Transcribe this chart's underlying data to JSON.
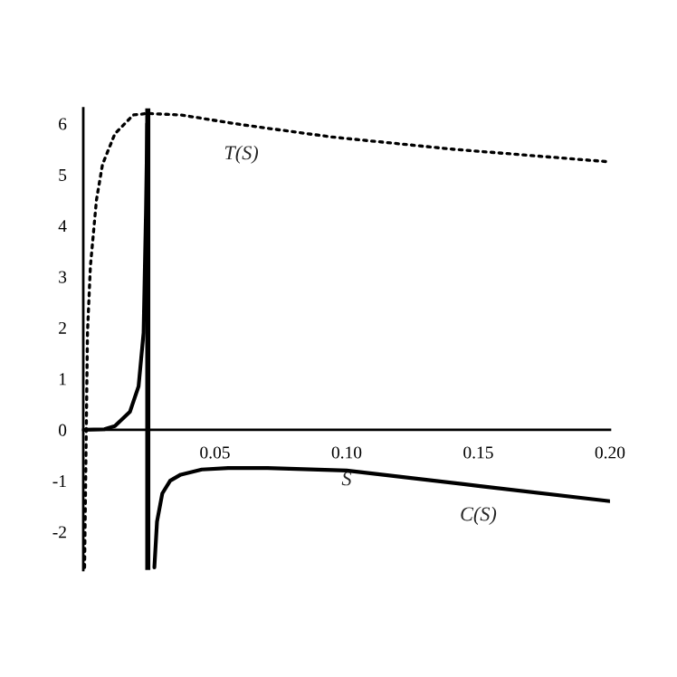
{
  "chart_data": {
    "type": "line",
    "xlabel": "S",
    "xlim": [
      0,
      0.2
    ],
    "ylim": [
      -2.75,
      6.3
    ],
    "xticks": [
      {
        "value": 0.05,
        "label": "0.05"
      },
      {
        "value": 0.1,
        "label": "0.10"
      },
      {
        "value": 0.15,
        "label": "0.15"
      },
      {
        "value": 0.2,
        "label": "0.20"
      }
    ],
    "yticks": [
      -2,
      -1,
      0,
      1,
      2,
      3,
      4,
      5,
      6
    ],
    "grid": false,
    "legend": false,
    "ref_lines": [
      {
        "axis": "x",
        "value": 0.0245,
        "color": "#000000"
      }
    ],
    "series": [
      {
        "name": "T(S)",
        "color": "#000000",
        "line_style": "dotted",
        "x": [
          0.0005,
          0.0016,
          0.0027,
          0.005,
          0.0073,
          0.012,
          0.019,
          0.0245,
          0.037,
          0.06,
          0.094,
          0.14,
          0.2
        ],
        "values": [
          -2.7,
          1.9,
          3.2,
          4.5,
          5.2,
          5.8,
          6.17,
          6.2,
          6.17,
          5.98,
          5.74,
          5.5,
          5.25
        ]
      },
      {
        "name": "C(S)",
        "color": "#000000",
        "line_style": "solid",
        "x": [
          0,
          0.008,
          0.012,
          0.0177,
          0.021,
          0.0229,
          0.0238,
          0.0243,
          0.0244,
          0.027,
          0.028,
          0.03,
          0.033,
          0.037,
          0.045,
          0.055,
          0.07,
          0.1,
          0.15,
          0.2
        ],
        "values": [
          0,
          0.01,
          0.07,
          0.35,
          0.85,
          1.9,
          4.25,
          6.0,
          null,
          -2.7,
          -1.8,
          -1.25,
          -1.0,
          -0.88,
          -0.78,
          -0.75,
          -0.75,
          -0.8,
          -1.1,
          -1.4
        ]
      }
    ]
  }
}
